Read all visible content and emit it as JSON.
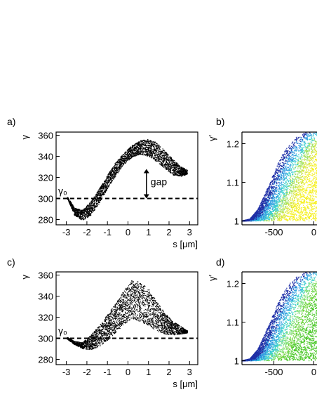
{
  "chart_data": [
    {
      "panel": "a)",
      "type": "scatter",
      "xlabel": "s [μm]",
      "ylabel": "γ",
      "xlim": [
        -3.5,
        3.4
      ],
      "ylim": [
        275,
        363
      ],
      "xticks": [
        "-3",
        "-2",
        "-1",
        "0",
        "1",
        "2",
        "3"
      ],
      "xtick_values": [
        -3,
        -2,
        -1,
        0,
        1,
        2,
        3
      ],
      "yticks": [
        "280",
        "300",
        "320",
        "340",
        "360"
      ],
      "ytick_values": [
        280,
        300,
        320,
        340,
        360
      ],
      "reference_line": {
        "label": "γ₀",
        "y": 300,
        "style": "dashed"
      },
      "annotation": {
        "text": "gap",
        "x": 0.9,
        "y_from": 300,
        "y_to": 328
      },
      "series": [
        {
          "color": "#000000",
          "x": [
            -2.95,
            -2.6,
            -2.2,
            -1.8,
            -1.4,
            -1.0,
            -0.6,
            -0.2,
            0.2,
            0.6,
            1.0,
            1.4,
            1.8,
            2.2,
            2.6,
            2.9
          ],
          "y_low": [
            300,
            284,
            279,
            284,
            295,
            309,
            321,
            332,
            339,
            342,
            340,
            335,
            328,
            322,
            321,
            323
          ],
          "y_high": [
            302,
            291,
            289,
            297,
            309,
            322,
            334,
            343,
            350,
            355,
            356,
            353,
            345,
            337,
            330,
            327
          ]
        }
      ]
    },
    {
      "panel": "b)",
      "type": "scatter",
      "xlabel": "",
      "ylabel": "γ′",
      "xlim": [
        -900,
        40
      ],
      "ylim": [
        0.99,
        1.23
      ],
      "xticks": [
        "-500",
        "0"
      ],
      "xtick_values": [
        -500,
        0
      ],
      "yticks": [
        "1",
        "1.1",
        "1.2"
      ],
      "ytick_values": [
        1.0,
        1.1,
        1.2
      ],
      "colormap": [
        "#1f2fa6",
        "#2e9be0",
        "#3dd0d0",
        "#9fe05a",
        "#d7e63a",
        "#f5f01e"
      ],
      "edge": {
        "x": [
          -900,
          -800,
          -700,
          -600,
          -500,
          -400,
          -300,
          -200,
          -100,
          0,
          40
        ],
        "y": [
          1.0,
          1.005,
          1.03,
          1.075,
          1.125,
          1.17,
          1.2,
          1.22,
          1.23,
          1.23,
          1.23
        ]
      }
    },
    {
      "panel": "c)",
      "type": "scatter",
      "xlabel": "s [μm]",
      "ylabel": "γ",
      "xlim": [
        -3.5,
        3.4
      ],
      "ylim": [
        275,
        363
      ],
      "xticks": [
        "-3",
        "-2",
        "-1",
        "0",
        "1",
        "2",
        "3"
      ],
      "xtick_values": [
        -3,
        -2,
        -1,
        0,
        1,
        2,
        3
      ],
      "yticks": [
        "280",
        "300",
        "320",
        "340",
        "360"
      ],
      "ytick_values": [
        280,
        300,
        320,
        340,
        360
      ],
      "reference_line": {
        "label": "γ₀",
        "y": 300,
        "style": "dashed"
      },
      "series": [
        {
          "color": "#000000",
          "x": [
            -2.95,
            -2.6,
            -2.2,
            -1.8,
            -1.4,
            -1.0,
            -0.6,
            -0.2,
            0.2,
            0.6,
            1.0,
            1.4,
            1.8,
            2.2,
            2.6,
            2.9
          ],
          "y_low": [
            299,
            294,
            290,
            289,
            292,
            298,
            305,
            313,
            318,
            316,
            312,
            307,
            304,
            303,
            304,
            305
          ],
          "y_high": [
            301,
            297,
            296,
            303,
            312,
            322,
            333,
            345,
            355,
            354,
            347,
            335,
            324,
            316,
            311,
            307
          ]
        }
      ]
    },
    {
      "panel": "d)",
      "type": "scatter",
      "xlabel": "",
      "ylabel": "γ′",
      "xlim": [
        -900,
        40
      ],
      "ylim": [
        0.99,
        1.23
      ],
      "xticks": [
        "-500",
        "0"
      ],
      "xtick_values": [
        -500,
        0
      ],
      "yticks": [
        "1",
        "1.1",
        "1.2"
      ],
      "ytick_values": [
        1.0,
        1.1,
        1.2
      ],
      "colormap": [
        "#1f2fa6",
        "#2e9be0",
        "#3dd0d0",
        "#7fe07a",
        "#6ed43a",
        "#4cc92a"
      ],
      "edge": {
        "x": [
          -900,
          -800,
          -700,
          -600,
          -500,
          -400,
          -300,
          -200,
          -100,
          0,
          40
        ],
        "y": [
          1.0,
          1.005,
          1.03,
          1.075,
          1.125,
          1.17,
          1.2,
          1.22,
          1.23,
          1.23,
          1.23
        ]
      }
    }
  ]
}
